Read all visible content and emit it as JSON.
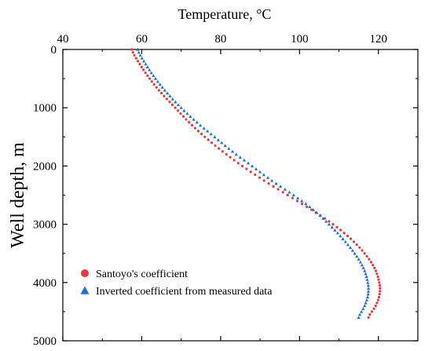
{
  "chart_data": {
    "type": "scatter",
    "xlabel": "Temperature, °C",
    "ylabel": "Well depth, m",
    "xlim": [
      40,
      130
    ],
    "ylim": [
      5000,
      0
    ],
    "x_axis_position": "top",
    "y_axis_inverted": true,
    "x_ticks": [
      40,
      60,
      80,
      100,
      120
    ],
    "y_ticks": [
      0,
      1000,
      2000,
      3000,
      4000,
      5000
    ],
    "grid": false,
    "legend_position": "bottom-left",
    "series": [
      {
        "name": "Santoyo's coefficient",
        "marker": "circle",
        "color": "#e8393f",
        "points": [
          {
            "depth": 0,
            "temp": 57.5
          },
          {
            "depth": 250,
            "temp": 59.5
          },
          {
            "depth": 500,
            "temp": 62.0
          },
          {
            "depth": 750,
            "temp": 65.0
          },
          {
            "depth": 1000,
            "temp": 68.5
          },
          {
            "depth": 1250,
            "temp": 72.0
          },
          {
            "depth": 1500,
            "temp": 76.0
          },
          {
            "depth": 1750,
            "temp": 80.5
          },
          {
            "depth": 2000,
            "temp": 85.5
          },
          {
            "depth": 2250,
            "temp": 91.0
          },
          {
            "depth": 2500,
            "temp": 97.0
          },
          {
            "depth": 2750,
            "temp": 103.0
          },
          {
            "depth": 3000,
            "temp": 108.5
          },
          {
            "depth": 3250,
            "temp": 113.0
          },
          {
            "depth": 3500,
            "temp": 116.5
          },
          {
            "depth": 3750,
            "temp": 119.0
          },
          {
            "depth": 4000,
            "temp": 120.2
          },
          {
            "depth": 4200,
            "temp": 120.3
          },
          {
            "depth": 4400,
            "temp": 119.3
          },
          {
            "depth": 4600,
            "temp": 117.5
          }
        ]
      },
      {
        "name": "Inverted coefficient from measured data",
        "marker": "triangle",
        "color": "#1f6fd1",
        "points": [
          {
            "depth": 0,
            "temp": 59.0
          },
          {
            "depth": 250,
            "temp": 61.0
          },
          {
            "depth": 500,
            "temp": 63.5
          },
          {
            "depth": 750,
            "temp": 66.5
          },
          {
            "depth": 1000,
            "temp": 70.0
          },
          {
            "depth": 1250,
            "temp": 74.0
          },
          {
            "depth": 1500,
            "temp": 78.5
          },
          {
            "depth": 1750,
            "temp": 83.0
          },
          {
            "depth": 2000,
            "temp": 88.0
          },
          {
            "depth": 2250,
            "temp": 93.0
          },
          {
            "depth": 2500,
            "temp": 98.5
          },
          {
            "depth": 2750,
            "temp": 103.5
          },
          {
            "depth": 3000,
            "temp": 107.5
          },
          {
            "depth": 3250,
            "temp": 111.0
          },
          {
            "depth": 3500,
            "temp": 114.0
          },
          {
            "depth": 3750,
            "temp": 116.2
          },
          {
            "depth": 4000,
            "temp": 117.3
          },
          {
            "depth": 4200,
            "temp": 117.4
          },
          {
            "depth": 4400,
            "temp": 116.5
          },
          {
            "depth": 4600,
            "temp": 115.0
          }
        ]
      }
    ]
  }
}
